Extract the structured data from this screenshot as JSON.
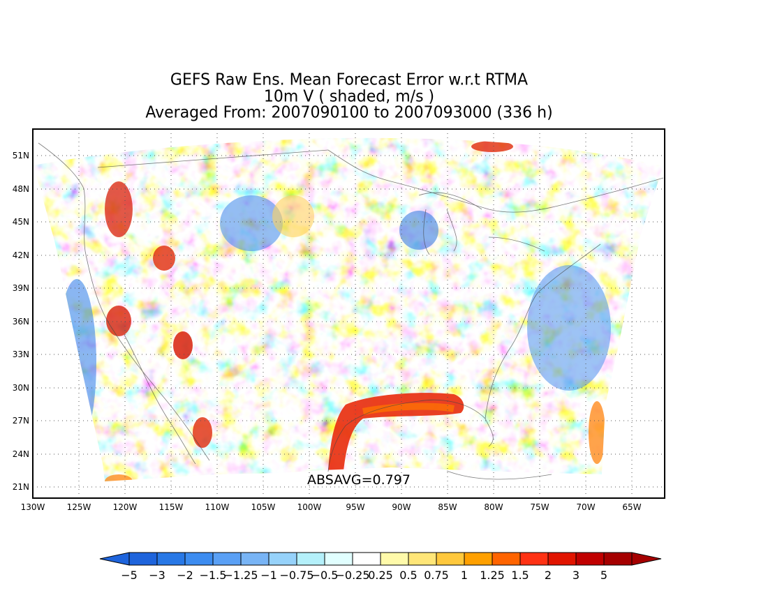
{
  "title": {
    "line1": "GEFS Raw Ens. Mean Forecast Error w.r.t RTMA",
    "line2": "10m V ( shaded, m/s )",
    "line3": "Averaged From: 2007090100 to 2007093000 (336 h)"
  },
  "map": {
    "lat_labels": [
      "51N",
      "48N",
      "45N",
      "42N",
      "39N",
      "36N",
      "33N",
      "30N",
      "27N",
      "24N",
      "21N"
    ],
    "lon_labels": [
      "130W",
      "125W",
      "120W",
      "115W",
      "110W",
      "105W",
      "100W",
      "95W",
      "90W",
      "85W",
      "80W",
      "75W",
      "70W",
      "65W"
    ],
    "absavg": "ABSAVG=0.797",
    "grid": "dotted"
  },
  "colorbar": {
    "labels": [
      "-5",
      "-3",
      "-2",
      "-1.5",
      "-1.25",
      "-1",
      "-0.75",
      "-0.5",
      "-0.25",
      "0.25",
      "0.5",
      "0.75",
      "1",
      "1.25",
      "1.5",
      "2",
      "3",
      "5"
    ],
    "colors": [
      "#1e64dc",
      "#2878e6",
      "#3c8cf0",
      "#5aa0f5",
      "#78b4f5",
      "#96d2fa",
      "#b4f0fa",
      "#e1ffff",
      "#ffffff",
      "#fffaaa",
      "#ffe678",
      "#ffc83c",
      "#ffa000",
      "#ff6400",
      "#ff3214",
      "#e11400",
      "#c00000",
      "#a50000"
    ],
    "low_extend_color": "#1e64dc",
    "high_extend_color": "#a50000"
  }
}
